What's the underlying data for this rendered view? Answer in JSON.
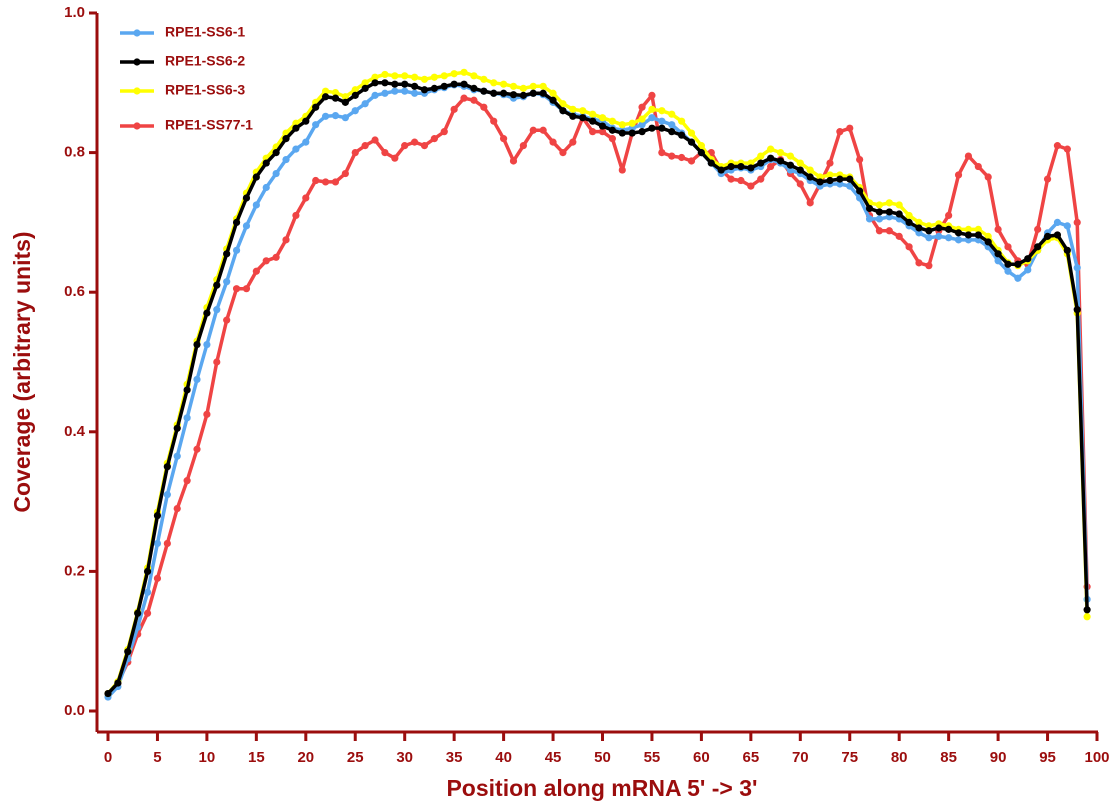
{
  "chart_data": {
    "type": "line",
    "x_label": "Position along mRNA 5' -> 3'",
    "y_label": "Coverage (arbitrary units)",
    "x": [
      0,
      1,
      2,
      3,
      4,
      5,
      6,
      7,
      8,
      9,
      10,
      11,
      12,
      13,
      14,
      15,
      16,
      17,
      18,
      19,
      20,
      21,
      22,
      23,
      24,
      25,
      26,
      27,
      28,
      29,
      30,
      31,
      32,
      33,
      34,
      35,
      36,
      37,
      38,
      39,
      40,
      41,
      42,
      43,
      44,
      45,
      46,
      47,
      48,
      49,
      50,
      51,
      52,
      53,
      54,
      55,
      56,
      57,
      58,
      59,
      60,
      61,
      62,
      63,
      64,
      65,
      66,
      67,
      68,
      69,
      70,
      71,
      72,
      73,
      74,
      75,
      76,
      77,
      78,
      79,
      80,
      81,
      82,
      83,
      84,
      85,
      86,
      87,
      88,
      89,
      90,
      91,
      92,
      93,
      94,
      95,
      96,
      97,
      98,
      99
    ],
    "series": [
      {
        "name": "RPE1-SS6-1",
        "color": "#5aa7f0",
        "values": [
          0.02,
          0.035,
          0.075,
          0.12,
          0.17,
          0.24,
          0.31,
          0.365,
          0.42,
          0.475,
          0.525,
          0.575,
          0.615,
          0.66,
          0.695,
          0.725,
          0.75,
          0.77,
          0.79,
          0.805,
          0.815,
          0.84,
          0.852,
          0.853,
          0.85,
          0.86,
          0.87,
          0.882,
          0.885,
          0.888,
          0.888,
          0.885,
          0.885,
          0.89,
          0.893,
          0.897,
          0.895,
          0.89,
          0.888,
          0.885,
          0.883,
          0.878,
          0.88,
          0.885,
          0.883,
          0.872,
          0.86,
          0.855,
          0.852,
          0.848,
          0.845,
          0.835,
          0.832,
          0.835,
          0.84,
          0.85,
          0.845,
          0.84,
          0.828,
          0.815,
          0.8,
          0.785,
          0.77,
          0.775,
          0.778,
          0.775,
          0.78,
          0.79,
          0.785,
          0.775,
          0.77,
          0.76,
          0.752,
          0.755,
          0.755,
          0.752,
          0.735,
          0.705,
          0.705,
          0.708,
          0.705,
          0.695,
          0.685,
          0.678,
          0.68,
          0.678,
          0.675,
          0.675,
          0.675,
          0.665,
          0.645,
          0.63,
          0.62,
          0.632,
          0.66,
          0.685,
          0.7,
          0.695,
          0.635,
          0.16
        ]
      },
      {
        "name": "RPE1-SS6-2",
        "color": "#000000",
        "values": [
          0.025,
          0.04,
          0.085,
          0.14,
          0.2,
          0.28,
          0.35,
          0.405,
          0.46,
          0.525,
          0.57,
          0.61,
          0.655,
          0.7,
          0.735,
          0.765,
          0.785,
          0.8,
          0.82,
          0.835,
          0.845,
          0.865,
          0.88,
          0.878,
          0.872,
          0.882,
          0.892,
          0.9,
          0.9,
          0.898,
          0.898,
          0.895,
          0.89,
          0.892,
          0.895,
          0.898,
          0.898,
          0.892,
          0.888,
          0.885,
          0.885,
          0.883,
          0.882,
          0.885,
          0.885,
          0.875,
          0.86,
          0.852,
          0.85,
          0.845,
          0.838,
          0.832,
          0.828,
          0.828,
          0.83,
          0.835,
          0.835,
          0.83,
          0.825,
          0.815,
          0.8,
          0.785,
          0.775,
          0.78,
          0.78,
          0.778,
          0.785,
          0.792,
          0.788,
          0.782,
          0.775,
          0.765,
          0.758,
          0.76,
          0.762,
          0.762,
          0.745,
          0.72,
          0.715,
          0.715,
          0.712,
          0.7,
          0.692,
          0.688,
          0.692,
          0.69,
          0.685,
          0.682,
          0.682,
          0.672,
          0.655,
          0.64,
          0.64,
          0.648,
          0.665,
          0.68,
          0.682,
          0.66,
          0.575,
          0.145
        ]
      },
      {
        "name": "RPE1-SS6-3",
        "color": "#ffff00",
        "values": [
          0.025,
          0.042,
          0.088,
          0.142,
          0.205,
          0.285,
          0.355,
          0.41,
          0.468,
          0.53,
          0.578,
          0.618,
          0.662,
          0.705,
          0.742,
          0.772,
          0.792,
          0.808,
          0.828,
          0.842,
          0.852,
          0.872,
          0.888,
          0.886,
          0.88,
          0.89,
          0.9,
          0.908,
          0.912,
          0.91,
          0.91,
          0.908,
          0.905,
          0.908,
          0.91,
          0.913,
          0.915,
          0.91,
          0.905,
          0.9,
          0.898,
          0.895,
          0.892,
          0.895,
          0.895,
          0.885,
          0.87,
          0.862,
          0.86,
          0.855,
          0.85,
          0.845,
          0.84,
          0.842,
          0.848,
          0.862,
          0.86,
          0.855,
          0.845,
          0.828,
          0.81,
          0.79,
          0.78,
          0.785,
          0.785,
          0.785,
          0.795,
          0.805,
          0.8,
          0.795,
          0.785,
          0.775,
          0.765,
          0.768,
          0.768,
          0.765,
          0.75,
          0.728,
          0.725,
          0.728,
          0.725,
          0.71,
          0.7,
          0.695,
          0.698,
          0.695,
          0.69,
          0.69,
          0.69,
          0.68,
          0.66,
          0.642,
          0.638,
          0.645,
          0.66,
          0.675,
          0.678,
          0.655,
          0.57,
          0.135
        ]
      },
      {
        "name": "RPE1-SS77-1",
        "color": "#ef4444",
        "values": [
          0.025,
          0.04,
          0.07,
          0.11,
          0.14,
          0.19,
          0.24,
          0.29,
          0.33,
          0.375,
          0.425,
          0.5,
          0.56,
          0.605,
          0.605,
          0.63,
          0.645,
          0.65,
          0.675,
          0.71,
          0.735,
          0.76,
          0.758,
          0.758,
          0.77,
          0.8,
          0.81,
          0.818,
          0.8,
          0.792,
          0.81,
          0.815,
          0.81,
          0.82,
          0.83,
          0.862,
          0.878,
          0.875,
          0.865,
          0.845,
          0.82,
          0.788,
          0.81,
          0.832,
          0.832,
          0.815,
          0.8,
          0.815,
          0.85,
          0.83,
          0.83,
          0.82,
          0.775,
          0.828,
          0.865,
          0.882,
          0.8,
          0.795,
          0.793,
          0.788,
          0.8,
          0.8,
          0.775,
          0.762,
          0.76,
          0.752,
          0.762,
          0.78,
          0.79,
          0.77,
          0.755,
          0.728,
          0.755,
          0.785,
          0.83,
          0.835,
          0.79,
          0.71,
          0.688,
          0.688,
          0.68,
          0.665,
          0.642,
          0.638,
          0.688,
          0.71,
          0.768,
          0.795,
          0.78,
          0.765,
          0.69,
          0.665,
          0.645,
          0.64,
          0.69,
          0.762,
          0.81,
          0.805,
          0.7,
          0.178
        ]
      }
    ],
    "xlim": [
      0,
      100
    ],
    "ylim": [
      0,
      1
    ],
    "xticks": [
      0,
      5,
      10,
      15,
      20,
      25,
      30,
      35,
      40,
      45,
      50,
      55,
      60,
      65,
      70,
      75,
      80,
      85,
      90,
      95,
      100
    ],
    "yticks": [
      {
        "value": 0,
        "label": "0.0"
      },
      0.2,
      0.4,
      0.6,
      0.8,
      {
        "value": 1,
        "label": "1.0"
      }
    ],
    "legend": "top-left",
    "axis_color": "#9b0d0d"
  }
}
